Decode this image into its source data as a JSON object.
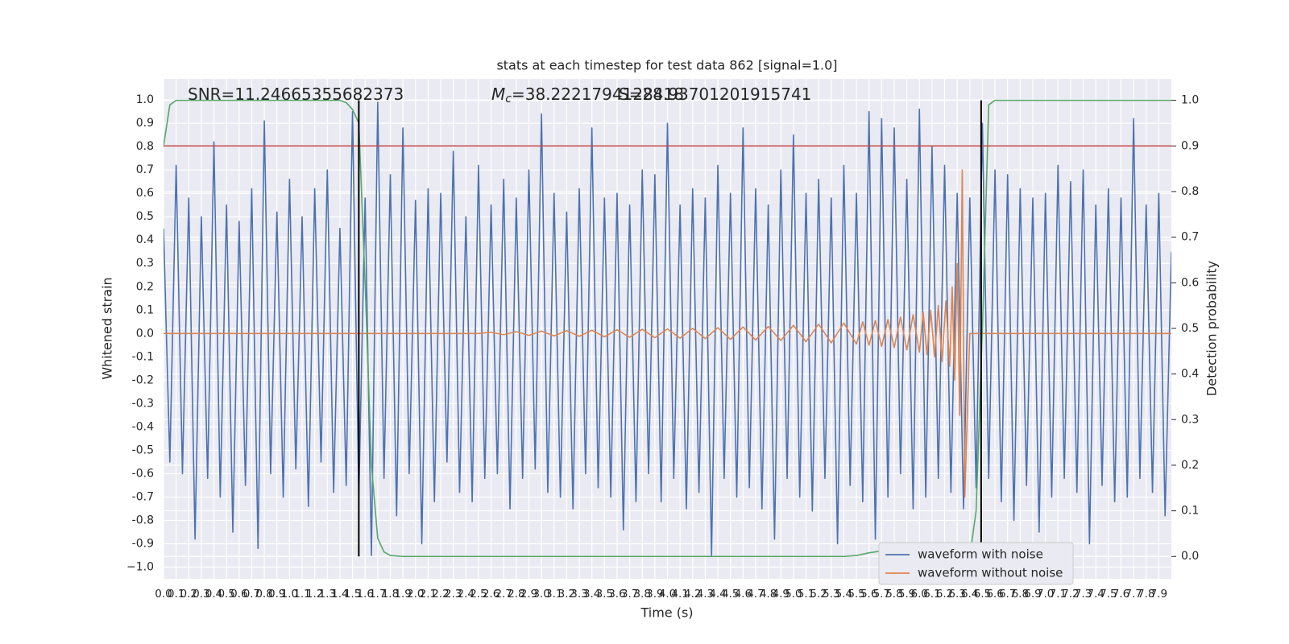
{
  "chart_data": {
    "type": "line",
    "title": "stats at each timestep for test data 862 [signal=1.0]",
    "x_label": "Time (s)",
    "y_label": "Whitened strain",
    "y2_label": "Detection probability",
    "annotations": [
      {
        "text": "SNR=11.24665355682373"
      },
      {
        "symbol": "M",
        "subscript": "c",
        "text": "=38.2221794128418"
      },
      {
        "text": "S=28.93701201915741"
      }
    ],
    "xlim": [
      0,
      8
    ],
    "ylim": [
      -1.05,
      1.09
    ],
    "y2lim": [
      -0.049,
      1.047
    ],
    "grid": true,
    "legend": "lower right",
    "xticks": [
      {
        "value": 0,
        "label": "0.0"
      },
      0.1,
      0.2,
      0.3,
      0.4,
      0.5,
      0.6,
      0.7,
      0.8,
      0.9,
      {
        "value": 1,
        "label": "1.0"
      },
      1.1,
      1.2,
      1.3,
      1.4,
      1.5,
      1.6,
      1.7,
      1.8,
      1.9,
      {
        "value": 2,
        "label": "2.0"
      },
      2.1,
      2.2,
      2.3,
      2.4,
      2.5,
      2.6,
      2.7,
      2.8,
      2.9,
      {
        "value": 3,
        "label": "3.0"
      },
      3.1,
      3.2,
      3.3,
      3.4,
      3.5,
      3.6,
      3.7,
      3.8,
      3.9,
      {
        "value": 4,
        "label": "4.0"
      },
      4.1,
      4.2,
      4.3,
      4.4,
      4.5,
      4.6,
      4.7,
      4.8,
      4.9,
      {
        "value": 5,
        "label": "5.0"
      },
      5.1,
      5.2,
      5.3,
      5.4,
      5.5,
      5.6,
      5.7,
      5.8,
      5.9,
      {
        "value": 6,
        "label": "6.0"
      },
      6.1,
      6.2,
      6.3,
      6.4,
      6.5,
      6.6,
      6.7,
      6.8,
      6.9,
      {
        "value": 7,
        "label": "7.0"
      },
      7.1,
      7.2,
      7.3,
      7.4,
      7.5,
      7.6,
      7.7,
      7.8,
      7.9
    ],
    "yticks": [
      {
        "value": -1,
        "label": "−1.0"
      },
      -0.9,
      -0.8,
      -0.7,
      -0.6,
      -0.5,
      -0.4,
      -0.3,
      -0.2,
      -0.1,
      {
        "value": 0,
        "label": "0.0"
      },
      0.1,
      0.2,
      0.3,
      0.4,
      0.5,
      0.6,
      0.7,
      0.8,
      0.9,
      {
        "value": 1,
        "label": "1.0"
      }
    ],
    "y2ticks": [
      {
        "value": 0,
        "label": "0.0"
      },
      0.1,
      0.2,
      0.3,
      0.4,
      0.5,
      0.6,
      0.7,
      0.8,
      0.9,
      {
        "value": 1,
        "label": "1.0"
      }
    ],
    "series": [
      {
        "name": "waveform with noise",
        "color": "#4c72b0",
        "x": [
          0,
          0.05,
          0.1,
          0.15,
          0.2,
          0.25,
          0.3,
          0.35,
          0.4,
          0.45,
          0.5,
          0.55,
          0.6,
          0.65,
          0.7,
          0.75,
          0.8,
          0.85,
          0.9,
          0.95,
          1,
          1.05,
          1.1,
          1.15,
          1.2,
          1.25,
          1.3,
          1.35,
          1.4,
          1.45,
          1.5,
          1.55,
          1.6,
          1.65,
          1.7,
          1.75,
          1.8,
          1.85,
          1.9,
          1.95,
          2,
          2.05,
          2.1,
          2.15,
          2.2,
          2.25,
          2.3,
          2.35,
          2.4,
          2.45,
          2.5,
          2.55,
          2.6,
          2.65,
          2.7,
          2.75,
          2.8,
          2.85,
          2.9,
          2.95,
          3,
          3.05,
          3.1,
          3.15,
          3.2,
          3.25,
          3.3,
          3.35,
          3.4,
          3.45,
          3.5,
          3.55,
          3.6,
          3.65,
          3.7,
          3.75,
          3.8,
          3.85,
          3.9,
          3.95,
          4,
          4.05,
          4.1,
          4.15,
          4.2,
          4.25,
          4.3,
          4.35,
          4.4,
          4.45,
          4.5,
          4.55,
          4.6,
          4.65,
          4.7,
          4.75,
          4.8,
          4.85,
          4.9,
          4.95,
          5,
          5.05,
          5.1,
          5.15,
          5.2,
          5.25,
          5.3,
          5.35,
          5.4,
          5.45,
          5.5,
          5.55,
          5.6,
          5.65,
          5.7,
          5.75,
          5.8,
          5.85,
          5.9,
          5.95,
          6,
          6.05,
          6.1,
          6.15,
          6.2,
          6.25,
          6.3,
          6.35,
          6.4,
          6.45,
          6.5,
          6.55,
          6.6,
          6.65,
          6.7,
          6.75,
          6.8,
          6.85,
          6.9,
          6.95,
          7,
          7.05,
          7.1,
          7.15,
          7.2,
          7.25,
          7.3,
          7.35,
          7.4,
          7.45,
          7.5,
          7.55,
          7.6,
          7.65,
          7.7,
          7.75,
          7.8,
          7.85,
          7.9,
          7.95,
          8
        ],
        "values": [
          0.45,
          -0.55,
          0.72,
          -0.6,
          0.58,
          -0.88,
          0.5,
          -0.62,
          0.82,
          -0.7,
          0.55,
          -0.85,
          0.48,
          -0.65,
          0.62,
          -0.92,
          0.91,
          -0.6,
          0.52,
          -0.7,
          0.66,
          -0.58,
          0.5,
          -0.74,
          0.62,
          -0.55,
          0.7,
          -0.68,
          0.45,
          -0.65,
          0.95,
          -0.7,
          0.58,
          -0.95,
          0.99,
          -0.62,
          0.68,
          -0.78,
          0.88,
          -0.6,
          0.57,
          -0.9,
          0.62,
          -0.72,
          0.6,
          -0.55,
          0.78,
          -0.68,
          0.5,
          -0.72,
          0.72,
          -0.62,
          0.55,
          -0.6,
          0.66,
          -0.75,
          0.58,
          -0.62,
          0.7,
          -0.58,
          0.94,
          -0.68,
          0.6,
          -0.7,
          0.52,
          -0.75,
          0.62,
          -0.6,
          0.88,
          -0.66,
          0.58,
          -0.7,
          0.6,
          -0.84,
          0.55,
          -0.72,
          0.7,
          -0.6,
          0.68,
          -0.72,
          0.9,
          -0.62,
          0.55,
          -0.75,
          0.62,
          -0.68,
          0.58,
          -0.95,
          0.72,
          -0.62,
          0.6,
          -0.7,
          0.88,
          -0.66,
          0.62,
          -0.75,
          0.55,
          -0.88,
          0.7,
          -0.62,
          0.85,
          -0.7,
          0.6,
          -0.76,
          0.66,
          -0.62,
          0.58,
          -0.9,
          0.72,
          -0.65,
          0.6,
          -0.72,
          0.95,
          -0.88,
          0.92,
          -0.7,
          0.88,
          -0.6,
          0.66,
          -0.75,
          0.96,
          -0.7,
          0.8,
          -0.62,
          0.72,
          -0.68,
          0.6,
          -0.75,
          0.58,
          -0.66,
          0.9,
          -0.62,
          0.7,
          -0.72,
          0.68,
          -0.8,
          0.62,
          -0.65,
          0.58,
          -0.85,
          0.6,
          -0.7,
          0.72,
          -0.62,
          0.65,
          -0.68,
          0.7,
          -0.9,
          0.55,
          -0.65,
          0.62,
          -0.72,
          0.58,
          -0.7,
          0.92,
          -0.62,
          0.55,
          -0.68,
          0.6,
          -0.78,
          0.35
        ]
      },
      {
        "name": "waveform without noise",
        "color": "#dd8452",
        "x": [
          0,
          2.5,
          2.6,
          2.7,
          2.8,
          2.9,
          3.0,
          3.1,
          3.2,
          3.3,
          3.4,
          3.5,
          3.6,
          3.7,
          3.8,
          3.9,
          4.0,
          4.1,
          4.2,
          4.3,
          4.4,
          4.5,
          4.6,
          4.7,
          4.8,
          4.9,
          5.0,
          5.1,
          5.2,
          5.3,
          5.4,
          5.5,
          5.55,
          5.6,
          5.65,
          5.7,
          5.75,
          5.8,
          5.85,
          5.9,
          5.95,
          6.0,
          6.03,
          6.06,
          6.09,
          6.12,
          6.15,
          6.18,
          6.21,
          6.24,
          6.26,
          6.28,
          6.3,
          6.32,
          6.34,
          6.36,
          6.4,
          8.0
        ],
        "values": [
          0,
          0,
          0.005,
          -0.005,
          0.008,
          -0.008,
          0.01,
          -0.01,
          0.012,
          -0.012,
          0.014,
          -0.014,
          0.016,
          -0.016,
          0.018,
          -0.018,
          0.02,
          -0.02,
          0.022,
          -0.022,
          0.025,
          -0.025,
          0.028,
          -0.028,
          0.03,
          -0.03,
          0.035,
          -0.035,
          0.04,
          -0.04,
          0.045,
          -0.045,
          0.05,
          -0.05,
          0.055,
          -0.055,
          0.06,
          -0.06,
          0.07,
          -0.07,
          0.08,
          -0.08,
          0.09,
          -0.09,
          0.1,
          -0.1,
          0.12,
          -0.12,
          0.14,
          -0.14,
          0.2,
          -0.2,
          0.3,
          -0.35,
          0.7,
          -0.7,
          0,
          0
        ]
      },
      {
        "color": "#55a868",
        "axis": "y2",
        "x": [
          0,
          0.05,
          0.1,
          0.2,
          1.4,
          1.45,
          1.5,
          1.55,
          1.6,
          1.65,
          1.7,
          1.75,
          1.8,
          1.9,
          2.0,
          5.4,
          5.5,
          5.6,
          5.7,
          5.8,
          5.9,
          6.0,
          6.4,
          6.45,
          6.5,
          6.55,
          6.6,
          8.0
        ],
        "values": [
          0.9,
          0.99,
          1.0,
          1.0,
          1.0,
          0.995,
          0.98,
          0.95,
          0.6,
          0.2,
          0.04,
          0.01,
          0.002,
          0,
          0,
          0,
          0.002,
          0.008,
          0.012,
          0.01,
          0.004,
          0,
          0,
          0.1,
          0.5,
          0.99,
          1.0,
          1.0
        ]
      }
    ],
    "hlines": [
      {
        "value": 0.9,
        "axis": "y2",
        "color": "#c44e52"
      }
    ],
    "vlines": [
      {
        "x": 1.55,
        "y2range": [
          0,
          1
        ],
        "color": "#000000"
      },
      {
        "x": 6.49,
        "y2range": [
          0,
          1
        ],
        "color": "#000000"
      }
    ]
  }
}
